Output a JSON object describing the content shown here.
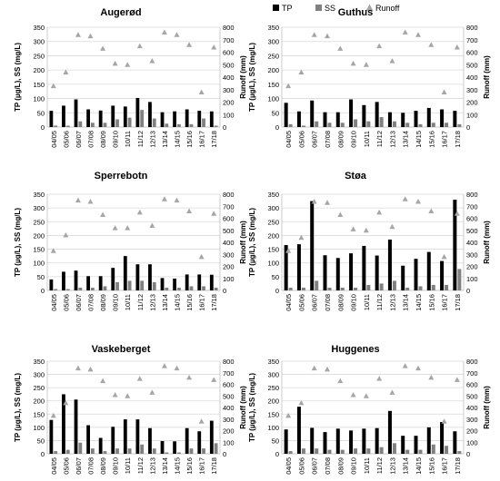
{
  "legend": [
    {
      "label": "TP",
      "color": "#000000",
      "kind": "bar"
    },
    {
      "label": "SS",
      "color": "#808080",
      "kind": "bar"
    },
    {
      "label": "Runoff",
      "color": "#a6a6a6",
      "kind": "triangle"
    }
  ],
  "chart_data": [
    {
      "type": "bar",
      "title": "Augerød",
      "legend_position": "top",
      "categories": [
        "04/05",
        "05/06",
        "06/07",
        "07/08",
        "08/09",
        "09/10",
        "10/11",
        "11/12",
        "12/13",
        "13/14",
        "14/15",
        "15/16",
        "16/17",
        "17/18"
      ],
      "ylabel": "TP (µg/L), SS (mg/L)",
      "y2label": "Runoff (mm)",
      "ylim": [
        0,
        350
      ],
      "yticks": [
        0,
        50,
        100,
        150,
        200,
        250,
        300,
        350
      ],
      "y2lim": [
        0,
        800
      ],
      "y2ticks": [
        0,
        100,
        200,
        300,
        400,
        500,
        600,
        700,
        800
      ],
      "series": [
        {
          "name": "TP",
          "axis": "left",
          "type": "bar",
          "values": [
            57,
            75,
            97,
            62,
            58,
            75,
            72,
            102,
            88,
            52,
            55,
            62,
            57,
            55
          ]
        },
        {
          "name": "SS",
          "axis": "left",
          "type": "bar",
          "values": [
            5,
            5,
            20,
            15,
            15,
            27,
            33,
            60,
            30,
            12,
            10,
            10,
            30,
            5
          ]
        },
        {
          "name": "Runoff",
          "axis": "right",
          "type": "scatter",
          "values": [
            330,
            440,
            740,
            730,
            630,
            510,
            500,
            650,
            530,
            760,
            740,
            660,
            280,
            640
          ]
        }
      ]
    },
    {
      "type": "bar",
      "title": "Guthus",
      "legend_position": "top",
      "categories": [
        "04/05",
        "05/06",
        "06/07",
        "07/08",
        "08/09",
        "09/10",
        "10/11",
        "11/12",
        "12/13",
        "13/14",
        "14/15",
        "15/16",
        "16/17",
        "17/18"
      ],
      "ylabel": "TP (µg/L), SS (mg/L)",
      "y2label": "Runoff (mm)",
      "ylim": [
        0,
        350
      ],
      "yticks": [
        0,
        50,
        100,
        150,
        200,
        250,
        300,
        350
      ],
      "y2lim": [
        0,
        800
      ],
      "y2ticks": [
        0,
        100,
        200,
        300,
        400,
        500,
        600,
        700,
        800
      ],
      "series": [
        {
          "name": "TP",
          "axis": "left",
          "type": "bar",
          "values": [
            85,
            55,
            93,
            52,
            52,
            97,
            77,
            88,
            52,
            50,
            57,
            67,
            62,
            57
          ]
        },
        {
          "name": "SS",
          "axis": "left",
          "type": "bar",
          "values": [
            10,
            5,
            20,
            15,
            15,
            27,
            20,
            35,
            20,
            15,
            10,
            15,
            15,
            10
          ]
        },
        {
          "name": "Runoff",
          "axis": "right",
          "type": "scatter",
          "values": [
            330,
            440,
            740,
            730,
            630,
            510,
            500,
            650,
            530,
            760,
            740,
            660,
            280,
            640
          ]
        }
      ]
    },
    {
      "type": "bar",
      "title": "Sperrebotn",
      "legend_position": "top",
      "categories": [
        "04/05",
        "05/06",
        "06/07",
        "07/08",
        "08/09",
        "09/10",
        "10/11",
        "11/12",
        "12/13",
        "13/14",
        "14/15",
        "15/16",
        "16/17",
        "17/18"
      ],
      "ylabel": "TP (µg/L), SS (mg/L)",
      "y2label": "Runoff (mm)",
      "ylim": [
        0,
        350
      ],
      "yticks": [
        0,
        50,
        100,
        150,
        200,
        250,
        300,
        350
      ],
      "y2lim": [
        0,
        800
      ],
      "y2ticks": [
        0,
        100,
        200,
        300,
        400,
        500,
        600,
        700,
        800
      ],
      "series": [
        {
          "name": "TP",
          "axis": "left",
          "type": "bar",
          "values": [
            40,
            68,
            72,
            52,
            52,
            82,
            125,
            95,
            95,
            45,
            43,
            58,
            58,
            57
          ]
        },
        {
          "name": "SS",
          "axis": "left",
          "type": "bar",
          "values": [
            5,
            5,
            10,
            10,
            15,
            30,
            35,
            35,
            30,
            10,
            10,
            15,
            15,
            10
          ]
        },
        {
          "name": "Runoff",
          "axis": "right",
          "type": "scatter",
          "values": [
            330,
            460,
            750,
            740,
            630,
            520,
            520,
            650,
            540,
            760,
            750,
            660,
            280,
            640
          ]
        }
      ]
    },
    {
      "type": "bar",
      "title": "Støa",
      "legend_position": "top",
      "categories": [
        "04/05",
        "05/06",
        "06/07",
        "07/08",
        "08/09",
        "09/10",
        "10/11",
        "11/12",
        "12/13",
        "13/14",
        "14/15",
        "15/16",
        "16/17",
        "17/18"
      ],
      "ylabel": "TP (µg/L), SS (mg/L)",
      "y2label": "Runoff (mm)",
      "ylim": [
        0,
        350
      ],
      "yticks": [
        0,
        50,
        100,
        150,
        200,
        250,
        300,
        350
      ],
      "y2lim": [
        0,
        800
      ],
      "y2ticks": [
        0,
        100,
        200,
        300,
        400,
        500,
        600,
        700,
        800
      ],
      "series": [
        {
          "name": "TP",
          "axis": "left",
          "type": "bar",
          "values": [
            165,
            168,
            325,
            128,
            118,
            135,
            162,
            127,
            185,
            90,
            115,
            140,
            107,
            330
          ]
        },
        {
          "name": "SS",
          "axis": "left",
          "type": "bar",
          "values": [
            10,
            10,
            35,
            10,
            10,
            10,
            20,
            25,
            35,
            10,
            15,
            20,
            20,
            78
          ]
        },
        {
          "name": "Runoff",
          "axis": "right",
          "type": "scatter",
          "values": [
            330,
            440,
            740,
            730,
            630,
            510,
            500,
            650,
            530,
            760,
            740,
            660,
            280,
            640
          ]
        }
      ]
    },
    {
      "type": "bar",
      "title": "Vaskeberget",
      "legend_position": "top",
      "categories": [
        "04/05",
        "05/06",
        "06/07",
        "07/08",
        "08/09",
        "09/10",
        "10/11",
        "11/12",
        "12/13",
        "13/14",
        "14/15",
        "15/16",
        "16/17",
        "17/18"
      ],
      "ylabel": "TP (µg/L), SS (mg/L)",
      "y2label": "Runoff (mm)",
      "ylim": [
        0,
        350
      ],
      "yticks": [
        0,
        50,
        100,
        150,
        200,
        250,
        300,
        350
      ],
      "y2lim": [
        0,
        800
      ],
      "y2ticks": [
        0,
        100,
        200,
        300,
        400,
        500,
        600,
        700,
        800
      ],
      "series": [
        {
          "name": "TP",
          "axis": "left",
          "type": "bar",
          "values": [
            128,
            225,
            205,
            108,
            60,
            102,
            130,
            130,
            97,
            48,
            47,
            97,
            85,
            125
          ]
        },
        {
          "name": "SS",
          "axis": "left",
          "type": "bar",
          "values": [
            10,
            15,
            42,
            20,
            10,
            20,
            20,
            35,
            20,
            5,
            5,
            20,
            20,
            40
          ]
        },
        {
          "name": "Runoff",
          "axis": "right",
          "type": "scatter",
          "values": [
            330,
            440,
            740,
            730,
            630,
            510,
            500,
            650,
            530,
            760,
            740,
            660,
            280,
            640
          ]
        }
      ]
    },
    {
      "type": "bar",
      "title": "Huggenes",
      "legend_position": "top",
      "categories": [
        "04/05",
        "05/06",
        "06/07",
        "07/08",
        "08/09",
        "09/10",
        "10/11",
        "11/12",
        "12/13",
        "13/14",
        "14/15",
        "15/16",
        "16/17",
        "17/18"
      ],
      "ylabel": "TP (µg/L), SS (mg/L)",
      "y2label": "Runoff (mm)",
      "ylim": [
        0,
        350
      ],
      "yticks": [
        0,
        50,
        100,
        150,
        200,
        250,
        300,
        350
      ],
      "y2lim": [
        0,
        800
      ],
      "y2ticks": [
        0,
        100,
        200,
        300,
        400,
        500,
        600,
        700,
        800
      ],
      "series": [
        {
          "name": "TP",
          "axis": "left",
          "type": "bar",
          "values": [
            92,
            178,
            98,
            82,
            95,
            88,
            95,
            97,
            162,
            68,
            68,
            100,
            120,
            85
          ]
        },
        {
          "name": "SS",
          "axis": "left",
          "type": "bar",
          "values": [
            10,
            20,
            20,
            15,
            15,
            20,
            20,
            25,
            40,
            15,
            15,
            35,
            30,
            10
          ]
        },
        {
          "name": "Runoff",
          "axis": "right",
          "type": "scatter",
          "values": [
            330,
            440,
            740,
            730,
            630,
            510,
            500,
            650,
            530,
            760,
            740,
            660,
            280,
            640
          ]
        }
      ]
    }
  ]
}
